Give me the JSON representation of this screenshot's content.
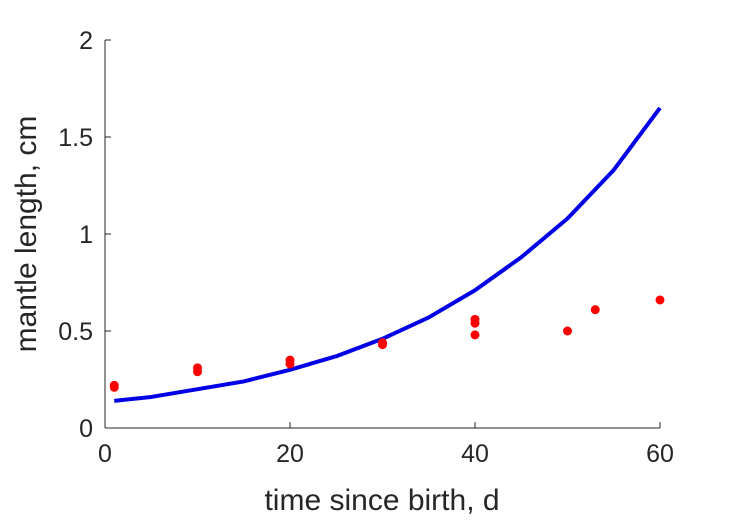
{
  "chart_data": {
    "type": "scatter",
    "title": "",
    "xlabel": "time since birth, d",
    "ylabel": "mantle length, cm",
    "xlim": [
      0,
      60
    ],
    "ylim": [
      0,
      2
    ],
    "xticks": [
      0,
      20,
      40,
      60
    ],
    "yticks": [
      0,
      0.5,
      1,
      1.5,
      2
    ],
    "xtick_labels": [
      "0",
      "20",
      "40",
      "60"
    ],
    "ytick_labels": [
      "0",
      "0.5",
      "1",
      "1.5",
      "2"
    ],
    "grid": false,
    "legend": "none",
    "series": [
      {
        "type": "scatter",
        "color": "#ff0000",
        "points": [
          {
            "x": 1,
            "y": 0.21
          },
          {
            "x": 1,
            "y": 0.22
          },
          {
            "x": 10,
            "y": 0.29
          },
          {
            "x": 10,
            "y": 0.31
          },
          {
            "x": 20,
            "y": 0.33
          },
          {
            "x": 20,
            "y": 0.35
          },
          {
            "x": 30,
            "y": 0.43
          },
          {
            "x": 30,
            "y": 0.44
          },
          {
            "x": 40,
            "y": 0.48
          },
          {
            "x": 40,
            "y": 0.54
          },
          {
            "x": 40,
            "y": 0.56
          },
          {
            "x": 50,
            "y": 0.5
          },
          {
            "x": 53,
            "y": 0.61
          },
          {
            "x": 60,
            "y": 0.66
          }
        ]
      },
      {
        "type": "line",
        "color": "#0000e6",
        "x": [
          1,
          5,
          10,
          15,
          20,
          25,
          30,
          35,
          40,
          45,
          50,
          55,
          60
        ],
        "y": [
          0.14,
          0.16,
          0.2,
          0.24,
          0.3,
          0.37,
          0.46,
          0.57,
          0.71,
          0.88,
          1.08,
          1.33,
          1.65
        ]
      }
    ]
  }
}
